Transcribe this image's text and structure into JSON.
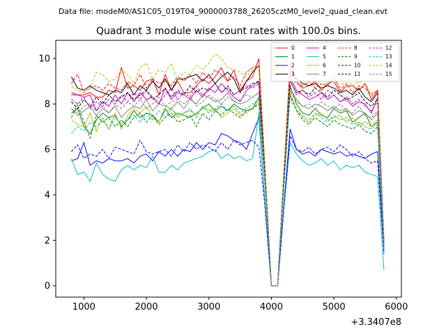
{
  "chart_data": {
    "type": "line",
    "suptitle": "Data file: modeM0/AS1C05_019T04_9000003788_26205cztM0_level2_quad_clean.evt",
    "title": "Quadrant 3 module wise count rates with 100.0s bins.",
    "xlabel": "",
    "ylabel": "",
    "x_offset_label": "+3.3407e8",
    "xlim": [
      550,
      6080
    ],
    "ylim": [
      -0.5,
      10.8
    ],
    "xticks": [
      1000,
      2000,
      3000,
      4000,
      5000,
      6000
    ],
    "yticks": [
      0,
      2,
      4,
      6,
      8,
      10
    ],
    "grid": false,
    "legend": {
      "placement": "top-right",
      "columns": 4
    },
    "x": [
      800,
      900,
      1000,
      1100,
      1200,
      1300,
      1400,
      1500,
      1600,
      1700,
      1800,
      1900,
      2000,
      2100,
      2200,
      2300,
      2400,
      2500,
      2600,
      2700,
      2800,
      2900,
      3000,
      3100,
      3200,
      3300,
      3400,
      3500,
      3600,
      3700,
      3800,
      3900,
      4000,
      4100,
      4200,
      4300,
      4400,
      4500,
      4600,
      4700,
      4800,
      4900,
      5000,
      5100,
      5200,
      5300,
      5400,
      5500,
      5600,
      5700,
      5800
    ],
    "series": [
      {
        "name": "0",
        "color": "#ff0000",
        "dash": false,
        "values": [
          8.5,
          8.4,
          8.4,
          8.5,
          8.3,
          8.3,
          8.6,
          8.5,
          9.6,
          8.7,
          8.8,
          8.6,
          9.0,
          9.1,
          8.4,
          9.3,
          8.6,
          9.0,
          8.5,
          8.5,
          8.8,
          9.1,
          8.9,
          9.2,
          9.6,
          9.0,
          9.5,
          8.6,
          9.0,
          9.2,
          10.0,
          5.0,
          0.0,
          0.0,
          5.0,
          9.8,
          9.0,
          8.7,
          8.8,
          9.0,
          8.6,
          8.9,
          9.0,
          8.5,
          8.8,
          8.8,
          8.6,
          8.9,
          8.2,
          8.6,
          2.0
        ]
      },
      {
        "name": "1",
        "color": "#008000",
        "dash": false,
        "values": [
          7.6,
          7.8,
          7.0,
          6.7,
          7.3,
          7.6,
          7.4,
          7.5,
          7.0,
          7.3,
          7.7,
          7.4,
          7.6,
          7.5,
          7.2,
          7.8,
          7.4,
          7.6,
          7.5,
          7.4,
          7.6,
          7.8,
          8.0,
          7.7,
          7.9,
          7.7,
          8.0,
          7.8,
          7.7,
          7.8,
          8.3,
          4.5,
          0.0,
          0.0,
          4.5,
          8.8,
          8.0,
          7.6,
          7.5,
          7.8,
          7.5,
          7.4,
          7.8,
          7.6,
          7.7,
          7.2,
          7.4,
          7.6,
          7.0,
          7.2,
          1.8
        ]
      },
      {
        "name": "2",
        "color": "#0000ff",
        "dash": false,
        "values": [
          5.5,
          5.6,
          6.3,
          5.3,
          5.5,
          5.4,
          5.6,
          5.5,
          5.5,
          5.6,
          5.4,
          5.7,
          5.8,
          5.5,
          5.9,
          5.7,
          6.0,
          5.7,
          6.0,
          5.9,
          6.3,
          6.0,
          6.3,
          6.2,
          6.7,
          6.6,
          6.4,
          6.3,
          6.0,
          6.7,
          7.4,
          3.5,
          0.0,
          0.0,
          3.5,
          6.9,
          6.0,
          5.8,
          5.9,
          5.7,
          6.0,
          5.9,
          5.8,
          5.9,
          5.7,
          5.8,
          5.7,
          5.6,
          5.8,
          5.9,
          1.5
        ]
      },
      {
        "name": "3",
        "color": "#000000",
        "dash": false,
        "values": [
          9.2,
          8.7,
          8.6,
          8.8,
          8.6,
          8.5,
          8.4,
          8.6,
          8.5,
          8.9,
          8.4,
          8.8,
          8.6,
          9.0,
          8.7,
          9.1,
          8.6,
          9.1,
          9.1,
          9.2,
          9.3,
          9.0,
          9.3,
          8.9,
          9.2,
          9.4,
          9.1,
          8.5,
          9.0,
          9.4,
          9.7,
          5.0,
          0.0,
          0.0,
          5.0,
          9.5,
          9.1,
          8.9,
          8.8,
          8.9,
          8.7,
          8.8,
          8.7,
          8.5,
          8.6,
          8.4,
          8.7,
          8.3,
          8.1,
          8.5,
          2.0
        ]
      },
      {
        "name": "4",
        "color": "#bf00bf",
        "dash": false,
        "values": [
          8.4,
          8.4,
          8.3,
          8.4,
          7.7,
          8.1,
          7.9,
          8.4,
          8.0,
          8.5,
          8.1,
          8.5,
          8.2,
          8.3,
          8.0,
          8.7,
          8.2,
          8.5,
          8.4,
          8.2,
          8.6,
          8.3,
          8.7,
          8.5,
          8.9,
          8.6,
          8.3,
          8.1,
          8.6,
          8.8,
          9.0,
          4.8,
          0.0,
          0.0,
          4.8,
          9.2,
          8.6,
          8.4,
          8.2,
          8.3,
          8.5,
          8.2,
          8.4,
          8.1,
          8.2,
          7.9,
          8.1,
          8.0,
          7.6,
          8.3,
          1.9
        ]
      },
      {
        "name": "5",
        "color": "#00bfbf",
        "dash": false,
        "values": [
          5.6,
          4.9,
          5.0,
          4.6,
          5.4,
          4.9,
          4.7,
          4.6,
          5.1,
          5.3,
          5.1,
          5.3,
          5.2,
          5.7,
          5.0,
          5.0,
          5.3,
          5.1,
          5.4,
          5.5,
          5.6,
          5.7,
          5.9,
          6.0,
          5.6,
          5.8,
          5.6,
          5.7,
          5.5,
          5.6,
          7.6,
          3.4,
          0.0,
          0.0,
          3.4,
          6.3,
          5.8,
          5.5,
          5.3,
          5.4,
          5.6,
          5.3,
          5.5,
          5.1,
          5.3,
          5.2,
          5.3,
          5.0,
          4.9,
          4.8,
          0.7
        ]
      },
      {
        "name": "6",
        "color": "#bfbf00",
        "dash": false,
        "values": [
          7.3,
          7.1,
          7.0,
          7.6,
          6.8,
          7.4,
          6.9,
          7.6,
          6.9,
          7.5,
          7.8,
          7.6,
          7.9,
          7.4,
          7.2,
          7.7,
          7.8,
          7.4,
          7.6,
          7.7,
          7.5,
          7.9,
          7.7,
          7.8,
          7.4,
          7.6,
          7.8,
          7.5,
          7.6,
          7.8,
          8.1,
          4.5,
          0.0,
          0.0,
          4.5,
          8.5,
          7.8,
          7.4,
          7.2,
          7.5,
          7.6,
          7.3,
          7.4,
          7.5,
          7.2,
          7.4,
          7.1,
          7.2,
          7.0,
          7.3,
          1.8
        ]
      },
      {
        "name": "7",
        "color": "#808080",
        "dash": false,
        "values": [
          7.8,
          7.5,
          7.7,
          7.9,
          7.5,
          7.8,
          7.6,
          7.9,
          7.4,
          7.7,
          7.9,
          7.8,
          8.2,
          7.7,
          8.0,
          7.9,
          7.8,
          8.1,
          7.8,
          8.2,
          8.0,
          8.4,
          8.3,
          8.1,
          8.2,
          8.5,
          8.1,
          8.0,
          8.1,
          8.3,
          8.5,
          4.6,
          0.0,
          0.0,
          4.6,
          8.7,
          8.2,
          7.9,
          7.8,
          8.0,
          7.9,
          7.7,
          7.9,
          7.7,
          7.8,
          7.5,
          7.7,
          7.6,
          7.3,
          7.6,
          1.9
        ]
      },
      {
        "name": "8",
        "color": "#ff0000",
        "dash": true,
        "values": [
          8.9,
          9.3,
          8.5,
          8.7,
          8.8,
          8.6,
          8.9,
          8.7,
          8.6,
          9.0,
          8.8,
          9.3,
          8.7,
          9.1,
          8.9,
          9.0,
          8.8,
          9.2,
          9.0,
          9.3,
          8.9,
          9.4,
          9.1,
          9.5,
          9.3,
          9.0,
          9.2,
          8.8,
          9.4,
          9.6,
          9.7,
          5.0,
          0.0,
          0.0,
          5.0,
          9.4,
          8.9,
          8.8,
          9.0,
          8.7,
          8.9,
          8.8,
          9.2,
          8.6,
          8.9,
          8.5,
          8.8,
          8.7,
          8.4,
          8.6,
          2.0
        ]
      },
      {
        "name": "9",
        "color": "#008000",
        "dash": true,
        "values": [
          7.4,
          8.0,
          7.2,
          6.5,
          7.5,
          7.2,
          7.4,
          7.0,
          7.3,
          7.0,
          7.4,
          7.6,
          7.2,
          7.5,
          7.1,
          7.4,
          7.6,
          7.2,
          7.3,
          7.5,
          7.0,
          7.6,
          7.3,
          7.7,
          7.5,
          7.8,
          7.6,
          7.4,
          7.7,
          7.8,
          8.0,
          4.3,
          0.0,
          0.0,
          4.3,
          8.4,
          7.7,
          7.3,
          7.1,
          7.4,
          7.2,
          7.0,
          7.3,
          7.1,
          7.0,
          6.9,
          7.1,
          6.8,
          6.7,
          7.0,
          1.7
        ]
      },
      {
        "name": "10",
        "color": "#0000ff",
        "dash": true,
        "values": [
          5.9,
          6.2,
          5.6,
          5.8,
          5.7,
          6.0,
          5.6,
          6.1,
          6.0,
          5.9,
          5.8,
          6.4,
          5.9,
          5.8,
          5.9,
          6.0,
          5.7,
          6.2,
          5.9,
          6.3,
          6.0,
          6.2,
          6.1,
          5.9,
          6.3,
          6.0,
          6.4,
          6.2,
          6.3,
          6.4,
          6.1,
          3.4,
          0.0,
          0.0,
          3.4,
          6.6,
          6.0,
          5.9,
          6.1,
          5.8,
          6.0,
          6.1,
          5.9,
          6.2,
          6.0,
          5.7,
          5.9,
          5.6,
          5.4,
          5.5,
          1.4
        ]
      },
      {
        "name": "11",
        "color": "#000000",
        "dash": true,
        "values": [
          8.1,
          7.8,
          8.2,
          7.9,
          8.3,
          8.0,
          8.4,
          8.1,
          8.3,
          8.5,
          8.2,
          8.4,
          8.6,
          8.2,
          8.4,
          8.7,
          8.3,
          8.6,
          8.4,
          8.8,
          8.5,
          8.7,
          8.6,
          8.9,
          8.5,
          8.8,
          8.4,
          8.6,
          8.7,
          8.9,
          9.0,
          4.8,
          0.0,
          0.0,
          4.8,
          9.0,
          8.5,
          8.6,
          8.4,
          8.7,
          8.5,
          8.3,
          8.6,
          8.4,
          8.2,
          8.3,
          8.5,
          8.1,
          7.9,
          8.2,
          1.9
        ]
      },
      {
        "name": "12",
        "color": "#bf00bf",
        "dash": true,
        "values": [
          8.2,
          8.0,
          8.3,
          7.8,
          8.1,
          7.9,
          8.2,
          8.0,
          8.4,
          8.1,
          8.5,
          8.2,
          8.6,
          8.3,
          8.0,
          8.4,
          8.7,
          8.2,
          8.5,
          8.3,
          8.8,
          8.4,
          8.6,
          8.9,
          8.5,
          8.7,
          8.4,
          8.6,
          8.8,
          8.7,
          8.9,
          4.7,
          0.0,
          0.0,
          4.7,
          9.1,
          8.4,
          8.6,
          8.3,
          8.5,
          8.2,
          8.6,
          8.4,
          8.1,
          8.3,
          8.0,
          8.2,
          7.9,
          7.7,
          8.1,
          1.9
        ]
      },
      {
        "name": "13",
        "color": "#00bfbf",
        "dash": true,
        "values": [
          6.7,
          7.0,
          6.8,
          7.2,
          7.0,
          7.3,
          6.9,
          7.4,
          7.1,
          7.3,
          7.5,
          7.2,
          7.6,
          7.3,
          7.7,
          7.4,
          7.8,
          7.5,
          7.6,
          7.8,
          7.4,
          7.9,
          7.6,
          7.8,
          8.0,
          7.7,
          7.9,
          7.6,
          7.8,
          8.0,
          8.2,
          4.4,
          0.0,
          0.0,
          4.4,
          8.3,
          7.7,
          7.5,
          7.3,
          7.6,
          7.4,
          7.2,
          7.5,
          7.3,
          7.4,
          7.1,
          7.2,
          7.0,
          6.9,
          7.1,
          1.6
        ]
      },
      {
        "name": "14",
        "color": "#bfbf00",
        "dash": true,
        "values": [
          8.8,
          8.6,
          8.5,
          8.7,
          9.4,
          9.3,
          9.0,
          9.1,
          9.5,
          9.3,
          8.9,
          9.6,
          9.8,
          9.1,
          9.5,
          9.4,
          9.8,
          9.0,
          9.4,
          9.3,
          9.7,
          9.5,
          9.8,
          10.2,
          10.0,
          9.6,
          9.5,
          9.4,
          9.2,
          9.5,
          9.7,
          5.1,
          0.0,
          0.0,
          5.1,
          9.5,
          9.0,
          8.6,
          9.0,
          9.2,
          8.8,
          9.0,
          9.3,
          8.7,
          9.1,
          8.8,
          9.0,
          8.9,
          8.5,
          8.4,
          2.0
        ]
      },
      {
        "name": "15",
        "color": "#808080",
        "dash": true,
        "values": [
          7.8,
          7.6,
          7.9,
          8.0,
          7.7,
          7.9,
          7.6,
          8.0,
          7.8,
          8.1,
          7.9,
          8.2,
          7.8,
          8.0,
          8.3,
          7.9,
          8.1,
          8.2,
          8.0,
          8.3,
          7.9,
          8.1,
          8.4,
          8.2,
          8.0,
          8.3,
          8.1,
          8.2,
          8.4,
          8.3,
          8.5,
          4.6,
          0.0,
          0.0,
          4.6,
          8.6,
          8.1,
          7.9,
          8.0,
          7.8,
          8.1,
          7.9,
          7.8,
          8.0,
          7.7,
          7.6,
          7.9,
          7.5,
          7.4,
          7.7,
          1.8
        ]
      }
    ]
  }
}
